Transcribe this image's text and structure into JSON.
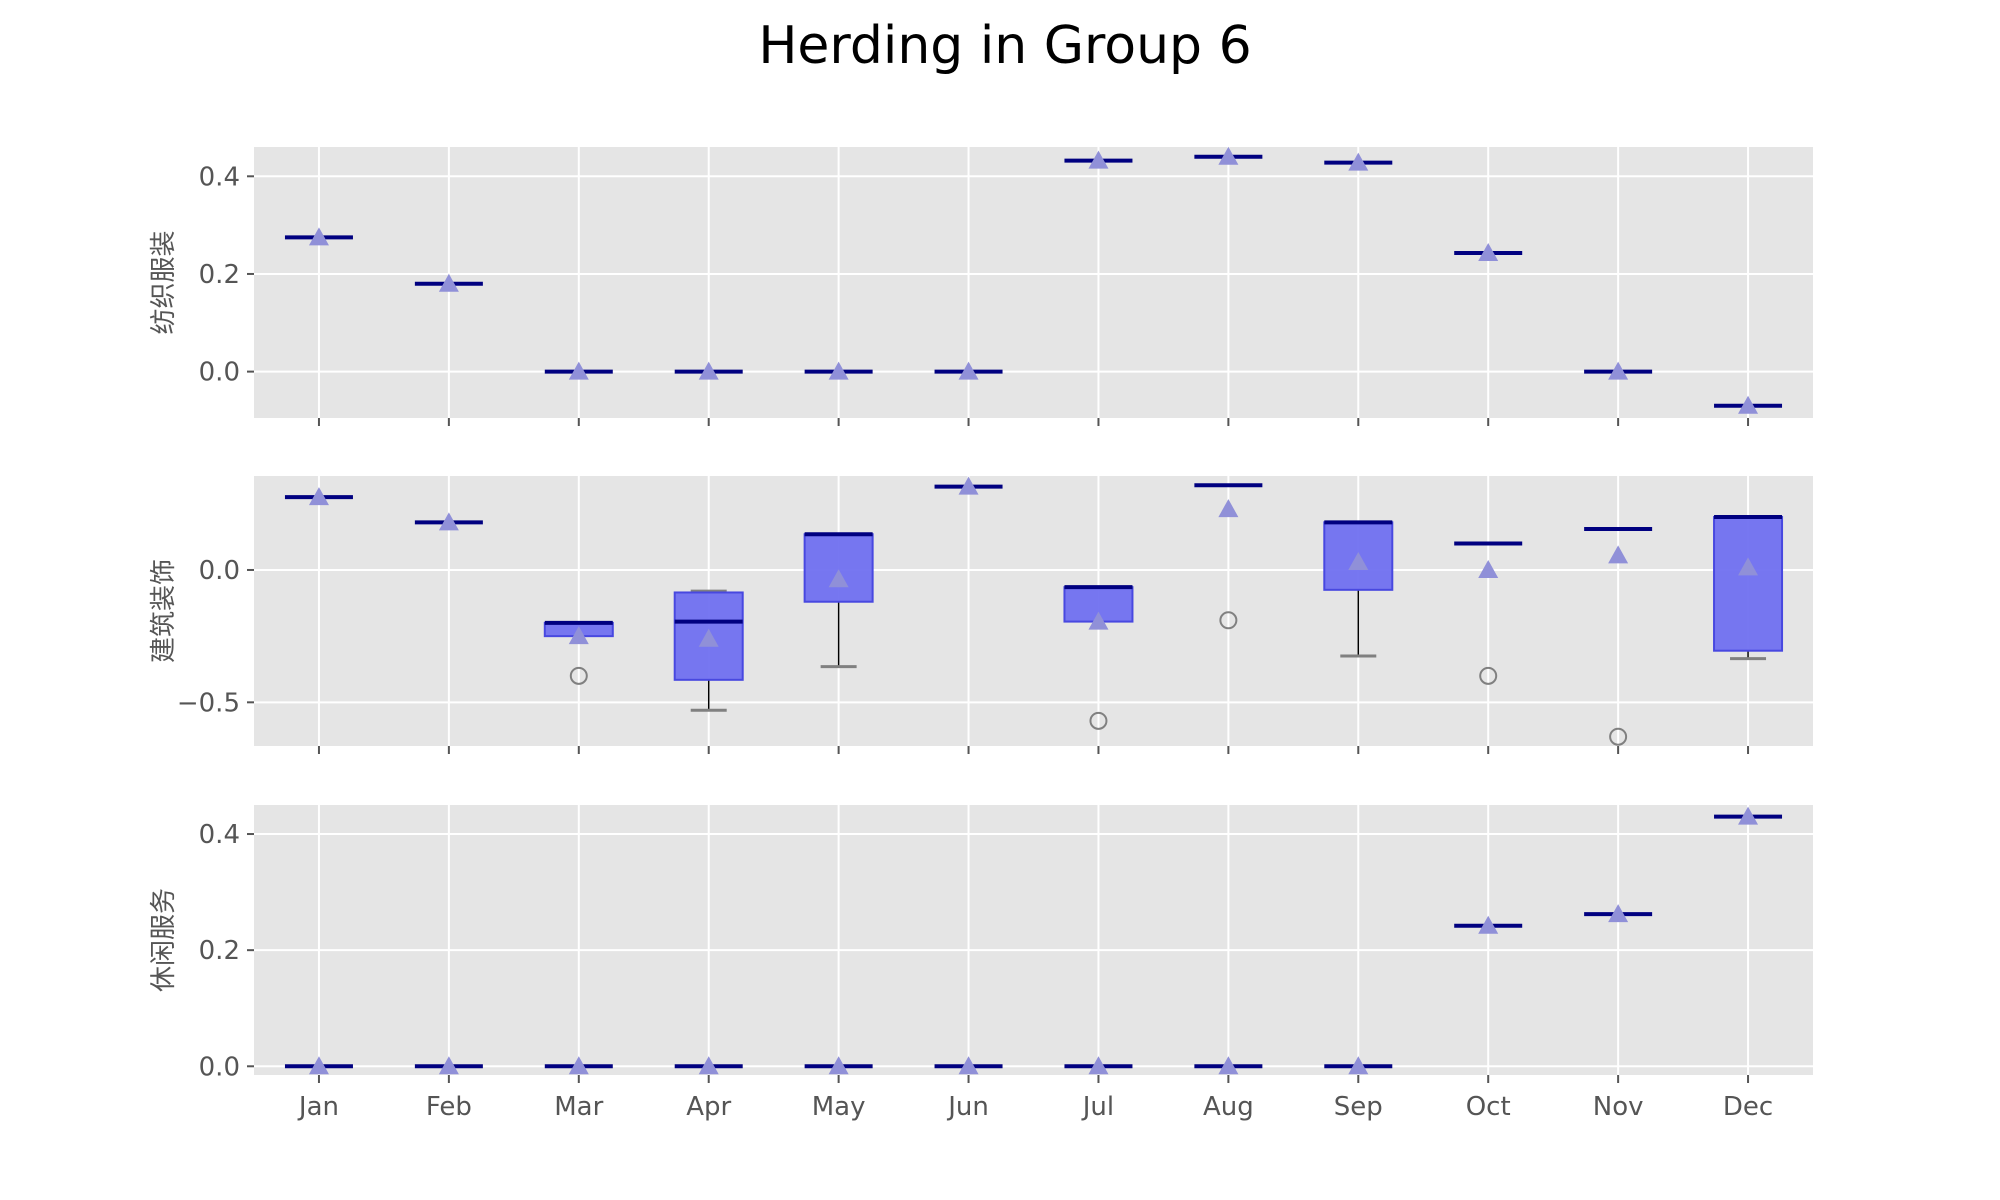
{
  "chart_data": {
    "title": "Herding in Group 6",
    "type": "box",
    "categories": [
      "Jan",
      "Feb",
      "Mar",
      "Apr",
      "May",
      "Jun",
      "Jul",
      "Aug",
      "Sep",
      "Oct",
      "Nov",
      "Dec"
    ],
    "legend": "none",
    "grid": true,
    "colors": {
      "axes_bg": "#e5e5e5",
      "grid": "#ffffff",
      "box_fill": "#7070f0",
      "box_edge": "#4848e0",
      "median": "#000080",
      "mean": "#9090d8",
      "whisker": "#808080",
      "flier": "#808080"
    },
    "panels": [
      {
        "ylabel": "纺织服装",
        "ylim": [
          -0.095,
          0.46
        ],
        "yticks": [
          0.0,
          0.2,
          0.4
        ],
        "ytick_labels": [
          "0.0",
          "0.2",
          "0.4"
        ],
        "boxes": [
          {
            "median": 0.275,
            "mean": 0.275
          },
          {
            "median": 0.18,
            "mean": 0.18
          },
          {
            "median": 0.0,
            "mean": 0.0
          },
          {
            "median": 0.0,
            "mean": 0.0
          },
          {
            "median": 0.0,
            "mean": 0.0
          },
          {
            "median": 0.0,
            "mean": 0.0
          },
          {
            "median": 0.432,
            "mean": 0.432
          },
          {
            "median": 0.44,
            "mean": 0.44
          },
          {
            "median": 0.428,
            "mean": 0.428
          },
          {
            "median": 0.243,
            "mean": 0.243
          },
          {
            "median": 0.0,
            "mean": 0.0
          },
          {
            "median": -0.07,
            "mean": -0.07
          }
        ]
      },
      {
        "ylabel": "建筑装饰",
        "ylim": [
          -0.665,
          0.355
        ],
        "yticks": [
          -0.5,
          0.0
        ],
        "ytick_labels": [
          "−0.5",
          "0.0"
        ],
        "boxes": [
          {
            "median": 0.275,
            "mean": 0.275
          },
          {
            "median": 0.18,
            "mean": 0.18
          },
          {
            "q1": -0.25,
            "q3": -0.2,
            "median": -0.2,
            "mean": -0.25,
            "whislo": -0.25,
            "whishi": -0.2,
            "fliers": [
              -0.4
            ]
          },
          {
            "q1": -0.415,
            "q3": -0.085,
            "median": -0.195,
            "mean": -0.26,
            "whislo": -0.53,
            "whishi": -0.08
          },
          {
            "q1": -0.12,
            "q3": 0.135,
            "median": 0.135,
            "mean": -0.035,
            "whislo": -0.365,
            "whishi": 0.135
          },
          {
            "median": 0.315,
            "mean": 0.315
          },
          {
            "q1": -0.195,
            "q3": -0.065,
            "median": -0.065,
            "mean": -0.195,
            "whislo": -0.195,
            "whishi": -0.065,
            "fliers": [
              -0.57
            ]
          },
          {
            "median": 0.32,
            "mean": 0.23,
            "fliers": [
              -0.19
            ]
          },
          {
            "q1": -0.075,
            "q3": 0.18,
            "median": 0.18,
            "mean": 0.03,
            "whislo": -0.325,
            "whishi": 0.18
          },
          {
            "median": 0.1,
            "mean": 0.0,
            "fliers": [
              -0.4
            ]
          },
          {
            "median": 0.155,
            "mean": 0.055,
            "fliers": [
              -0.63
            ]
          },
          {
            "q1": -0.305,
            "q3": 0.2,
            "median": 0.2,
            "mean": 0.01,
            "whislo": -0.335,
            "whishi": 0.2
          }
        ]
      },
      {
        "ylabel": "休闲服务",
        "ylim": [
          -0.015,
          0.45
        ],
        "yticks": [
          0.0,
          0.2,
          0.4
        ],
        "ytick_labels": [
          "0.0",
          "0.2",
          "0.4"
        ],
        "xtick_labels": true,
        "boxes": [
          {
            "median": 0.0,
            "mean": 0.0
          },
          {
            "median": 0.0,
            "mean": 0.0
          },
          {
            "median": 0.0,
            "mean": 0.0
          },
          {
            "median": 0.0,
            "mean": 0.0
          },
          {
            "median": 0.0,
            "mean": 0.0
          },
          {
            "median": 0.0,
            "mean": 0.0
          },
          {
            "median": 0.0,
            "mean": 0.0
          },
          {
            "median": 0.0,
            "mean": 0.0
          },
          {
            "median": 0.0,
            "mean": 0.0
          },
          {
            "median": 0.242,
            "mean": 0.242
          },
          {
            "median": 0.262,
            "mean": 0.262
          },
          {
            "median": 0.43,
            "mean": 0.43
          }
        ]
      }
    ]
  }
}
